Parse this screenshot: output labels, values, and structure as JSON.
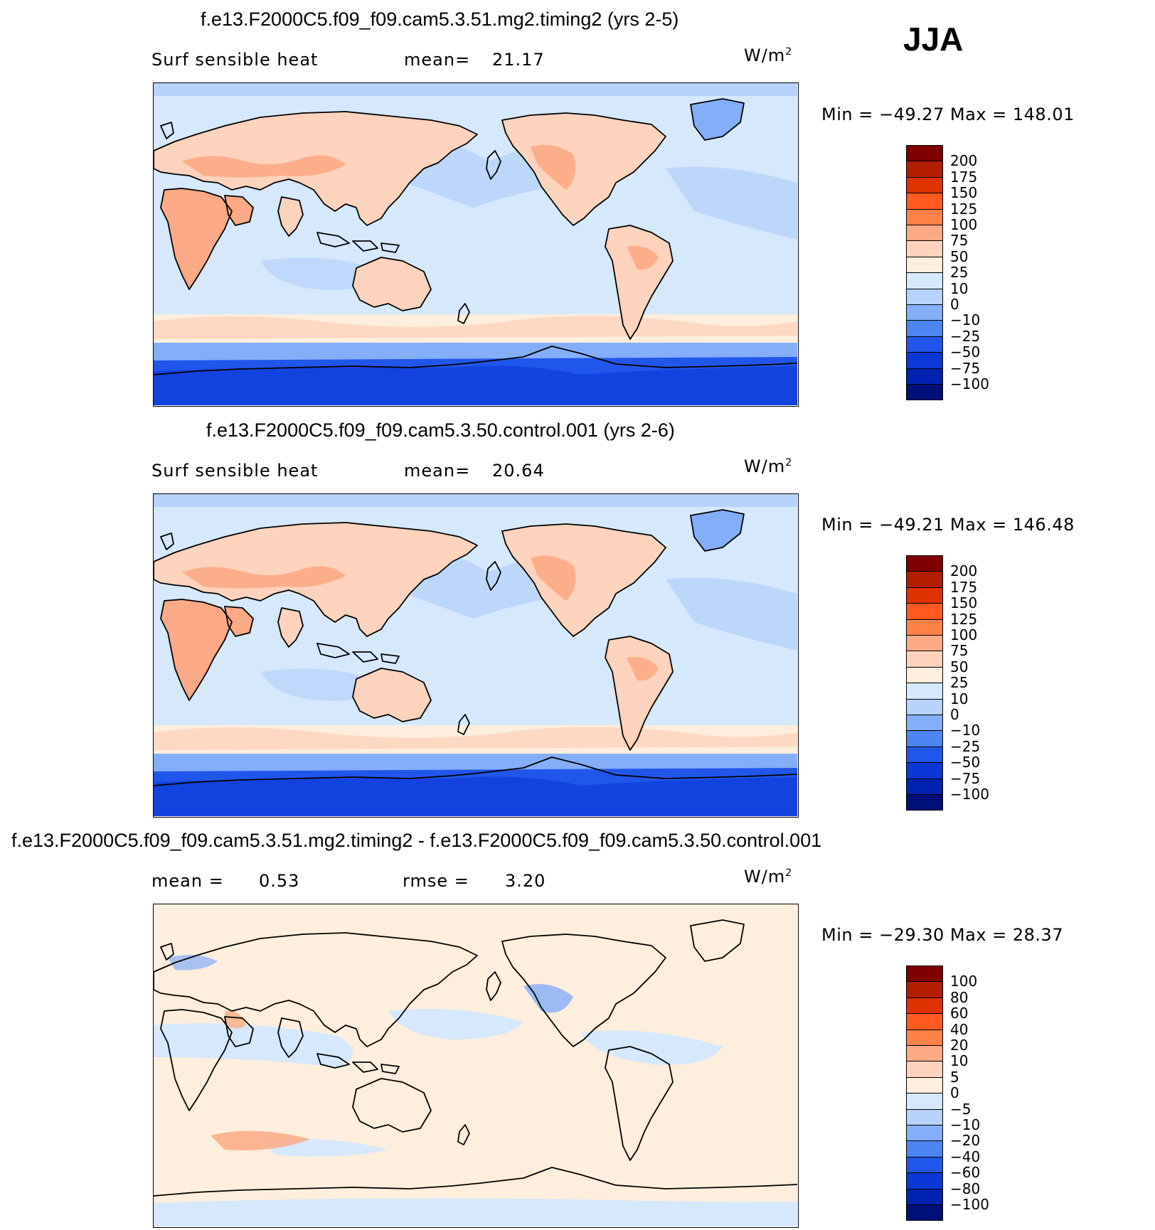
{
  "season": "JJA",
  "panels": [
    {
      "title": "f.e13.F2000C5.f09_f09.cam5.3.51.mg2.timing2 (yrs 2-5)",
      "left_label": "Surf sensible heat",
      "stat_label": "mean=",
      "stat_value": "21.17",
      "units": "W/m",
      "units_sup": "2",
      "min_max": "Min = −49.27 Max = 148.01",
      "colorbar": {
        "levels": [
          "200",
          "175",
          "150",
          "125",
          "100",
          "75",
          "50",
          "25",
          "10",
          "0",
          "−10",
          "−25",
          "−50",
          "−75",
          "−100"
        ],
        "colors": [
          "#7f0000",
          "#b31e00",
          "#e03200",
          "#ff5a1f",
          "#ff8148",
          "#fcaa85",
          "#fdd3bd",
          "#fdeedd",
          "#d6e8fb",
          "#b7d2fb",
          "#85aef9",
          "#4d85f2",
          "#2156ea",
          "#0a37d6",
          "#0022b0",
          "#00107a"
        ]
      },
      "map_scheme": "abs"
    },
    {
      "title": "f.e13.F2000C5.f09_f09.cam5.3.50.control.001 (yrs 2-6)",
      "left_label": "Surf sensible heat",
      "stat_label": "mean=",
      "stat_value": "20.64",
      "units": "W/m",
      "units_sup": "2",
      "min_max": "Min = −49.21 Max = 146.48",
      "colorbar": {
        "levels": [
          "200",
          "175",
          "150",
          "125",
          "100",
          "75",
          "50",
          "25",
          "10",
          "0",
          "−10",
          "−25",
          "−50",
          "−75",
          "−100"
        ],
        "colors": [
          "#7f0000",
          "#b31e00",
          "#e03200",
          "#ff5a1f",
          "#ff8148",
          "#fcaa85",
          "#fdd3bd",
          "#fdeedd",
          "#d6e8fb",
          "#b7d2fb",
          "#85aef9",
          "#4d85f2",
          "#2156ea",
          "#0a37d6",
          "#0022b0",
          "#00107a"
        ]
      },
      "map_scheme": "abs"
    },
    {
      "title": "f.e13.F2000C5.f09_f09.cam5.3.51.mg2.timing2 - f.e13.F2000C5.f09_f09.cam5.3.50.control.001",
      "left_label": "mean =",
      "left_value": "0.53",
      "stat_label": "rmse =",
      "stat_value": "3.20",
      "units": "W/m",
      "units_sup": "2",
      "min_max": "Min = −29.30 Max =  28.37",
      "colorbar": {
        "levels": [
          "100",
          "80",
          "60",
          "40",
          "20",
          "10",
          "5",
          "0",
          "−5",
          "−10",
          "−20",
          "−40",
          "−60",
          "−80",
          "−100"
        ],
        "colors": [
          "#7f0000",
          "#b31e00",
          "#e03200",
          "#ff5a1f",
          "#ff8148",
          "#fcaa85",
          "#fdd3bd",
          "#fdeedd",
          "#d6e8fb",
          "#b7d2fb",
          "#85aef9",
          "#4d85f2",
          "#2156ea",
          "#0a37d6",
          "#0022b0",
          "#00107a"
        ]
      },
      "map_scheme": "diff"
    }
  ]
}
